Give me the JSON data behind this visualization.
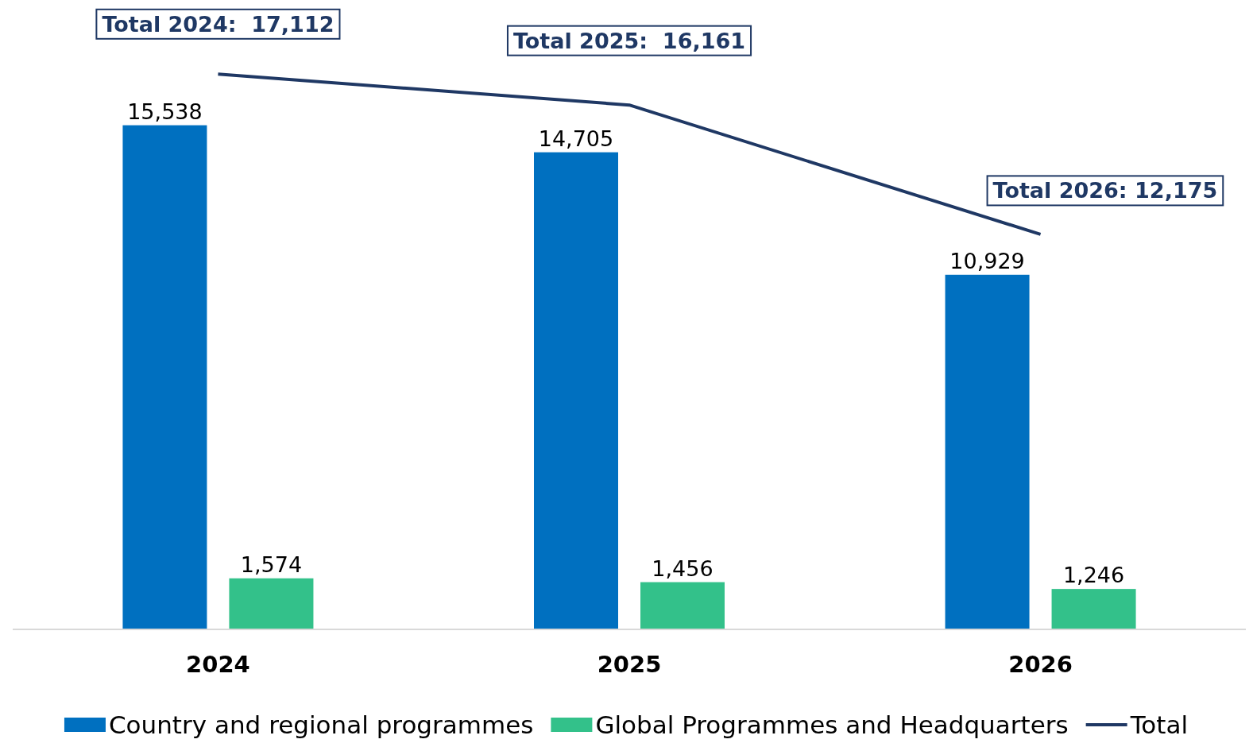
{
  "chart_data": {
    "type": "bar",
    "categories": [
      "2024",
      "2025",
      "2026"
    ],
    "legend": "bottom",
    "series": [
      {
        "name": "Country and regional programmes",
        "color": "#0070c0",
        "values": [
          15538,
          14705,
          10929
        ],
        "value_labels": [
          "15,538",
          "14,705",
          "10,929"
        ]
      },
      {
        "name": "Global Programmes and Headquarters",
        "color": "#33c18a",
        "values": [
          1574,
          1456,
          1246
        ],
        "value_labels": [
          "1,574",
          "1,456",
          "1,246"
        ]
      },
      {
        "name": "Total",
        "type": "line",
        "color": "#1f3864",
        "values": [
          17112,
          16161,
          12175
        ],
        "value_labels": [
          "Total 2024:  17,112",
          "Total 2025:  16,161",
          "Total 2026: 12,175"
        ]
      }
    ]
  }
}
